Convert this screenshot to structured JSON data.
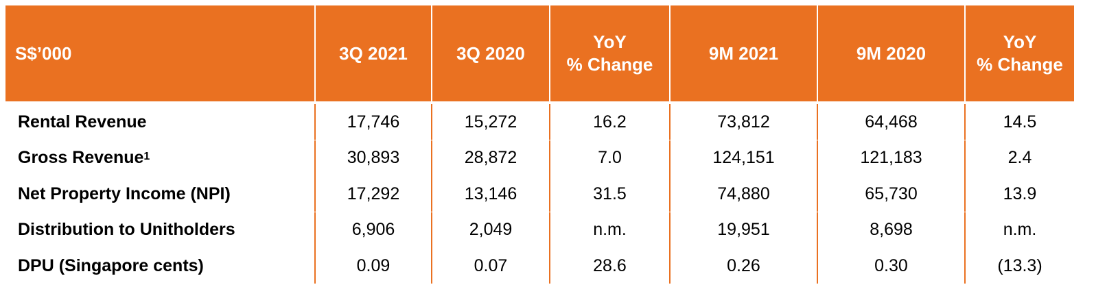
{
  "table": {
    "header": [
      {
        "lines": [
          "S$’000"
        ]
      },
      {
        "lines": [
          "3Q 2021"
        ]
      },
      {
        "lines": [
          "3Q 2020"
        ]
      },
      {
        "lines": [
          "YoY",
          "% Change"
        ]
      },
      {
        "lines": [
          "9M 2021"
        ]
      },
      {
        "lines": [
          "9M 2020"
        ]
      },
      {
        "lines": [
          "YoY",
          "% Change"
        ]
      }
    ],
    "rows": [
      {
        "label": "Rental Revenue",
        "cells": [
          "17,746",
          "15,272",
          "16.2",
          "73,812",
          "64,468",
          "14.5"
        ]
      },
      {
        "label": "Gross Revenue",
        "footnote": "1",
        "cells": [
          "30,893",
          "28,872",
          "7.0",
          "124,151",
          "121,183",
          "2.4"
        ]
      },
      {
        "label": "Net Property Income (NPI)",
        "cells": [
          "17,292",
          "13,146",
          "31.5",
          "74,880",
          "65,730",
          "13.9"
        ]
      },
      {
        "label": "Distribution to Unitholders",
        "cells": [
          "6,906",
          "2,049",
          "n.m.",
          "19,951",
          "8,698",
          "n.m."
        ]
      },
      {
        "label": "DPU (Singapore cents)",
        "cells": [
          "0.09",
          "0.07",
          "28.6",
          "0.26",
          "0.30",
          "(13.3)"
        ]
      }
    ]
  }
}
